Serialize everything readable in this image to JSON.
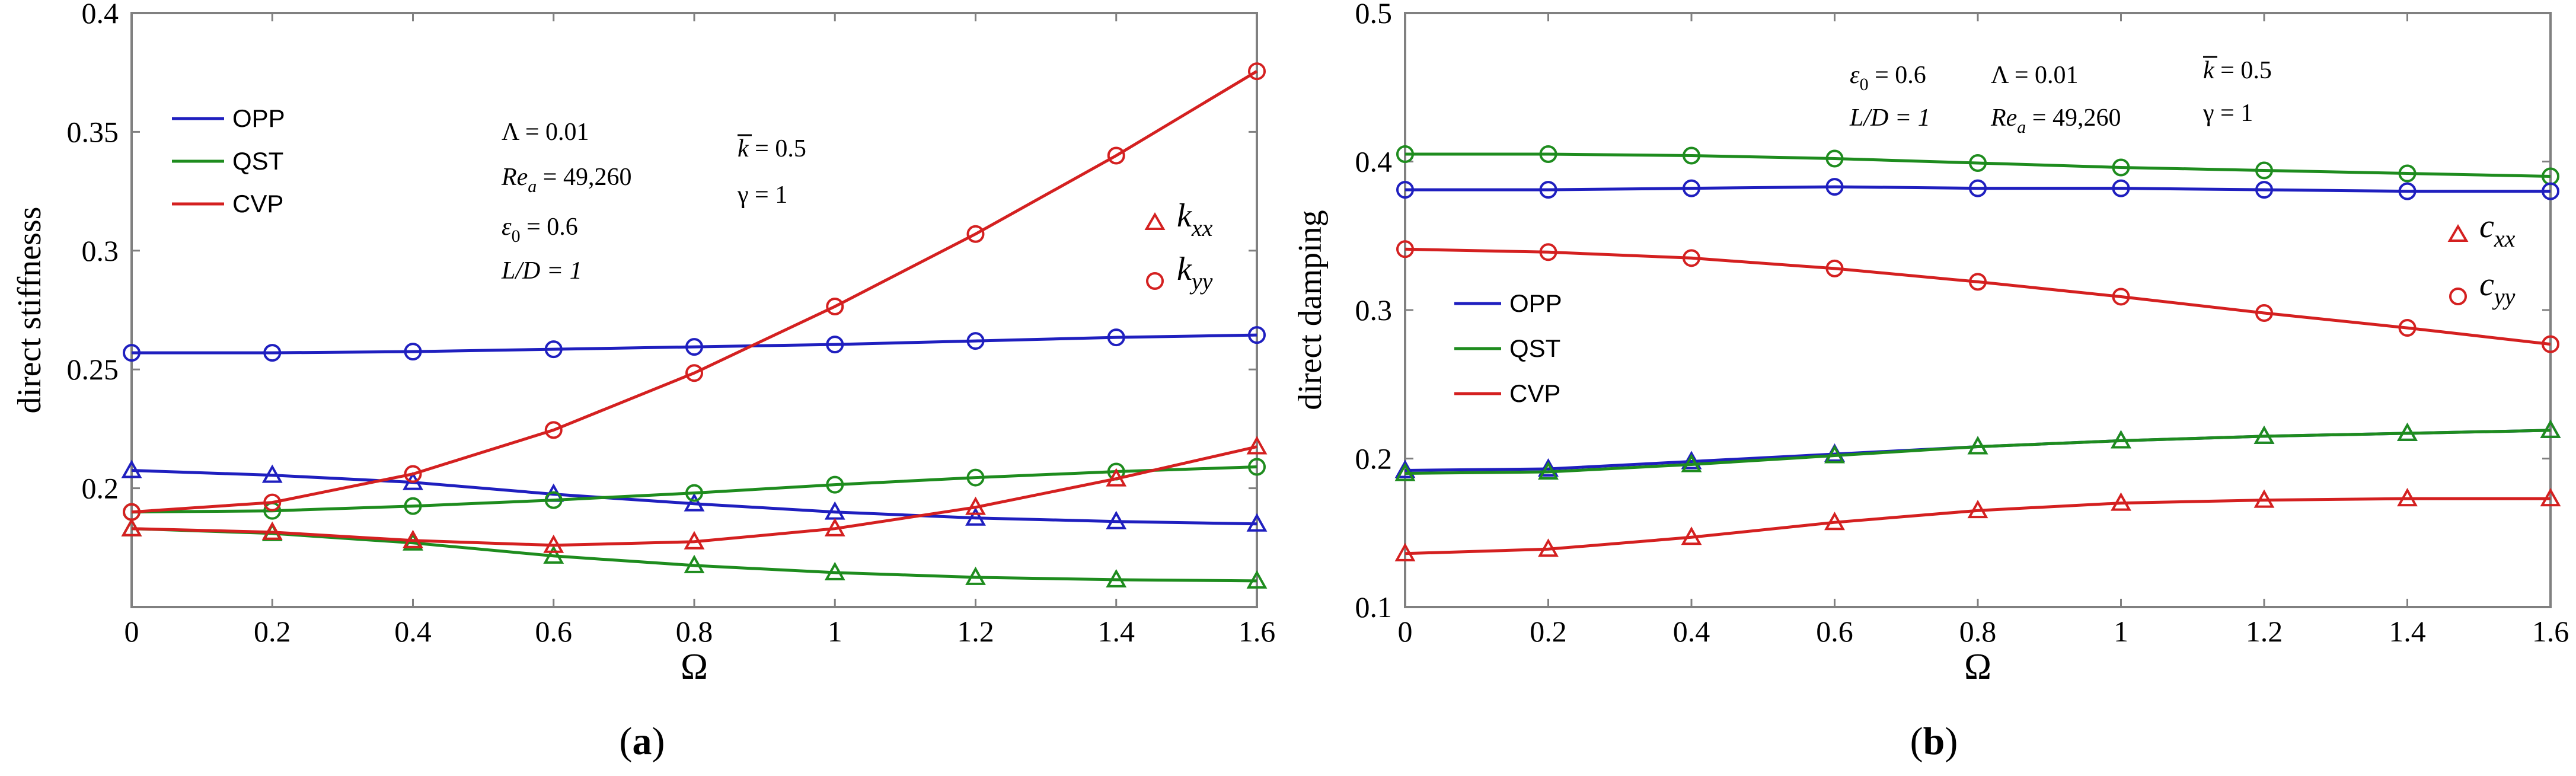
{
  "chart_data": [
    {
      "type": "line",
      "panel_label": "a",
      "ylabel": "direct stiffnesss",
      "xlabel": "Ω",
      "x": [
        0,
        0.2,
        0.4,
        0.6,
        0.8,
        1,
        1.2,
        1.4,
        1.6
      ],
      "x_ticks": [
        "0",
        "0.2",
        "0.4",
        "0.6",
        "0.8",
        "1",
        "1.2",
        "1.4",
        "1.6"
      ],
      "xlim": [
        0,
        1.6
      ],
      "ylim": [
        0.15,
        0.4
      ],
      "y_ticks": [
        "0.2",
        "0.25",
        "0.3",
        "0.35",
        "0.4"
      ],
      "y_tick_values": [
        0.2,
        0.25,
        0.3,
        0.35,
        0.4
      ],
      "legend": [
        {
          "name": "OPP",
          "color": "#1f1fbf"
        },
        {
          "name": "QST",
          "color": "#1e8c1e"
        },
        {
          "name": "CVP",
          "color": "#d42020"
        }
      ],
      "marker_legend": [
        {
          "symbol": "triangle",
          "coef": "k",
          "sub": "xx"
        },
        {
          "symbol": "circle",
          "coef": "k",
          "sub": "yy"
        }
      ],
      "params": [
        "Λ = 0.01",
        "Re",
        "a",
        " = 49,260",
        "ε",
        "0",
        " = 0.6",
        "L/D = 1",
        "k",
        " = 0.5",
        "γ = 1"
      ],
      "series": [
        {
          "name": "OPP k_yy",
          "color": "#1f1fbf",
          "marker": "circle",
          "values": [
            0.257,
            0.257,
            0.2575,
            0.2585,
            0.2595,
            0.2605,
            0.262,
            0.2635,
            0.2645
          ]
        },
        {
          "name": "OPP k_xx",
          "color": "#1f1fbf",
          "marker": "triangle",
          "values": [
            0.2075,
            0.2055,
            0.2025,
            0.1975,
            0.1935,
            0.19,
            0.1875,
            0.186,
            0.185
          ]
        },
        {
          "name": "QST k_yy",
          "color": "#1e8c1e",
          "marker": "circle",
          "values": [
            0.19,
            0.1905,
            0.1925,
            0.195,
            0.198,
            0.2015,
            0.2045,
            0.207,
            0.209
          ]
        },
        {
          "name": "QST k_xx",
          "color": "#1e8c1e",
          "marker": "triangle",
          "values": [
            0.183,
            0.181,
            0.177,
            0.1715,
            0.1675,
            0.1645,
            0.1625,
            0.1615,
            0.161
          ]
        },
        {
          "name": "CVP k_yy",
          "color": "#d42020",
          "marker": "circle",
          "values": [
            0.19,
            0.194,
            0.206,
            0.2245,
            0.2485,
            0.2765,
            0.307,
            0.34,
            0.3755
          ]
        },
        {
          "name": "CVP k_xx",
          "color": "#d42020",
          "marker": "triangle",
          "values": [
            0.183,
            0.1815,
            0.178,
            0.176,
            0.1775,
            0.183,
            0.192,
            0.204,
            0.2175
          ]
        }
      ]
    },
    {
      "type": "line",
      "panel_label": "b",
      "ylabel": "direct damping",
      "xlabel": "Ω",
      "x": [
        0,
        0.2,
        0.4,
        0.6,
        0.8,
        1,
        1.2,
        1.4,
        1.6
      ],
      "x_ticks": [
        "0",
        "0.2",
        "0.4",
        "0.6",
        "0.8",
        "1",
        "1.2",
        "1.4",
        "1.6"
      ],
      "xlim": [
        0,
        1.6
      ],
      "ylim": [
        0.1,
        0.5
      ],
      "y_ticks": [
        "0.1",
        "0.2",
        "0.3",
        "0.4",
        "0.5"
      ],
      "y_tick_values": [
        0.1,
        0.2,
        0.3,
        0.4,
        0.5
      ],
      "legend": [
        {
          "name": "OPP",
          "color": "#1f1fbf"
        },
        {
          "name": "QST",
          "color": "#1e8c1e"
        },
        {
          "name": "CVP",
          "color": "#d42020"
        }
      ],
      "marker_legend": [
        {
          "symbol": "triangle",
          "coef": "c",
          "sub": "xx"
        },
        {
          "symbol": "circle",
          "coef": "c",
          "sub": "yy"
        }
      ],
      "params": [
        "ε",
        "0",
        " = 0.6",
        "Λ = 0.01",
        "k",
        " = 0.5",
        "L/D = 1",
        "Re",
        "a",
        " = 49,260",
        "γ = 1"
      ],
      "series": [
        {
          "name": "QST c_yy",
          "color": "#1e8c1e",
          "marker": "circle",
          "values": [
            0.405,
            0.405,
            0.404,
            0.402,
            0.399,
            0.396,
            0.394,
            0.392,
            0.39
          ]
        },
        {
          "name": "OPP c_yy",
          "color": "#1f1fbf",
          "marker": "circle",
          "values": [
            0.381,
            0.381,
            0.382,
            0.383,
            0.382,
            0.382,
            0.381,
            0.38,
            0.38
          ]
        },
        {
          "name": "CVP c_yy",
          "color": "#d42020",
          "marker": "circle",
          "values": [
            0.341,
            0.339,
            0.335,
            0.328,
            0.319,
            0.309,
            0.298,
            0.288,
            0.277
          ]
        },
        {
          "name": "OPP c_xx",
          "color": "#1f1fbf",
          "marker": "triangle",
          "values": [
            0.192,
            0.193,
            0.198,
            0.203,
            0.208,
            0.212,
            0.215,
            0.217,
            0.219
          ]
        },
        {
          "name": "QST c_xx",
          "color": "#1e8c1e",
          "marker": "triangle",
          "values": [
            0.19,
            0.191,
            0.196,
            0.202,
            0.208,
            0.212,
            0.215,
            0.217,
            0.219
          ]
        },
        {
          "name": "CVP c_xx",
          "color": "#d42020",
          "marker": "triangle",
          "values": [
            0.136,
            0.139,
            0.147,
            0.157,
            0.165,
            0.17,
            0.172,
            0.173,
            0.173
          ]
        }
      ]
    }
  ]
}
